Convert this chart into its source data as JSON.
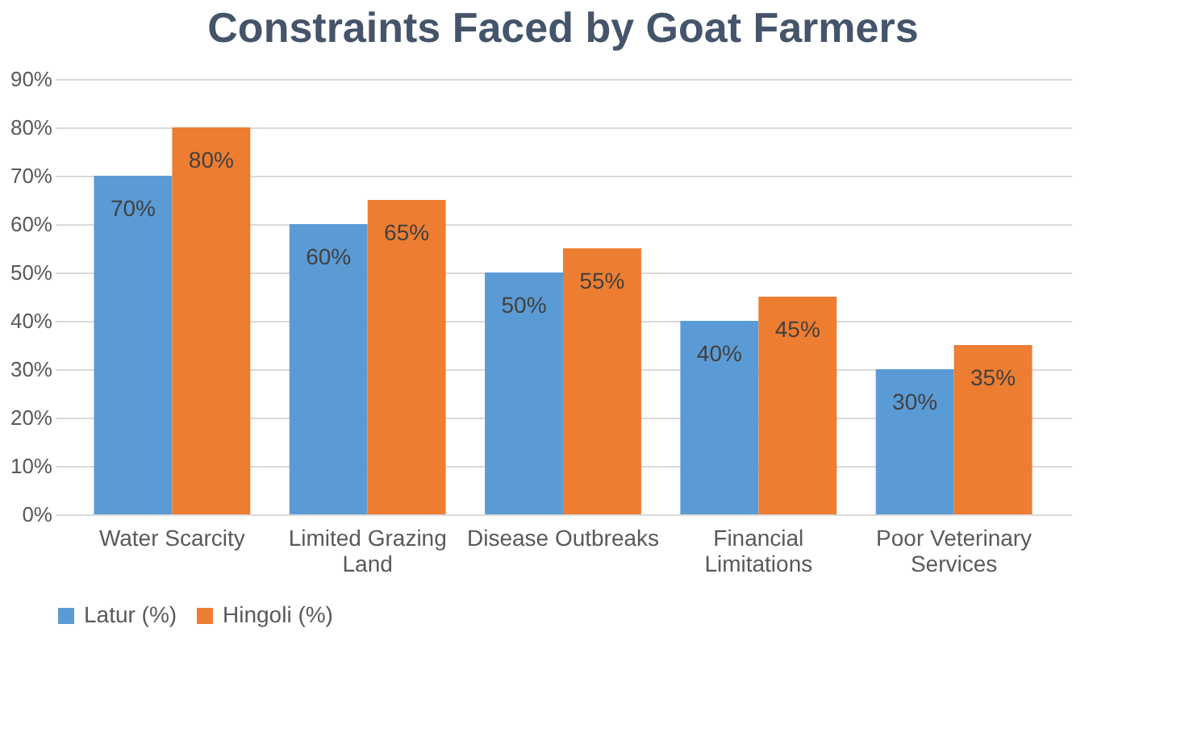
{
  "chart_data": {
    "type": "bar",
    "title": "Constraints Faced by Goat Farmers",
    "categories": [
      "Water Scarcity",
      "Limited Grazing Land",
      "Disease Outbreaks",
      "Financial Limitations",
      "Poor Veterinary Services"
    ],
    "series": [
      {
        "name": "Latur (%)",
        "color": "#5b9bd5",
        "values": [
          70,
          60,
          50,
          40,
          30
        ],
        "value_labels": [
          "70%",
          "60%",
          "50%",
          "40%",
          "30%"
        ]
      },
      {
        "name": "Hingoli (%)",
        "color": "#ed7d31",
        "values": [
          80,
          65,
          55,
          45,
          35
        ],
        "value_labels": [
          "80%",
          "65%",
          "55%",
          "45%",
          "35%"
        ]
      }
    ],
    "ylim": [
      0,
      90
    ],
    "yticks": [
      {
        "value": 0,
        "label": "0%"
      },
      {
        "value": 10,
        "label": "10%"
      },
      {
        "value": 20,
        "label": "20%"
      },
      {
        "value": 30,
        "label": "30%"
      },
      {
        "value": 40,
        "label": "40%"
      },
      {
        "value": 50,
        "label": "50%"
      },
      {
        "value": 60,
        "label": "60%"
      },
      {
        "value": 70,
        "label": "70%"
      },
      {
        "value": 80,
        "label": "80%"
      },
      {
        "value": 90,
        "label": "90%"
      }
    ],
    "grid": "y",
    "legend": "bottom"
  }
}
